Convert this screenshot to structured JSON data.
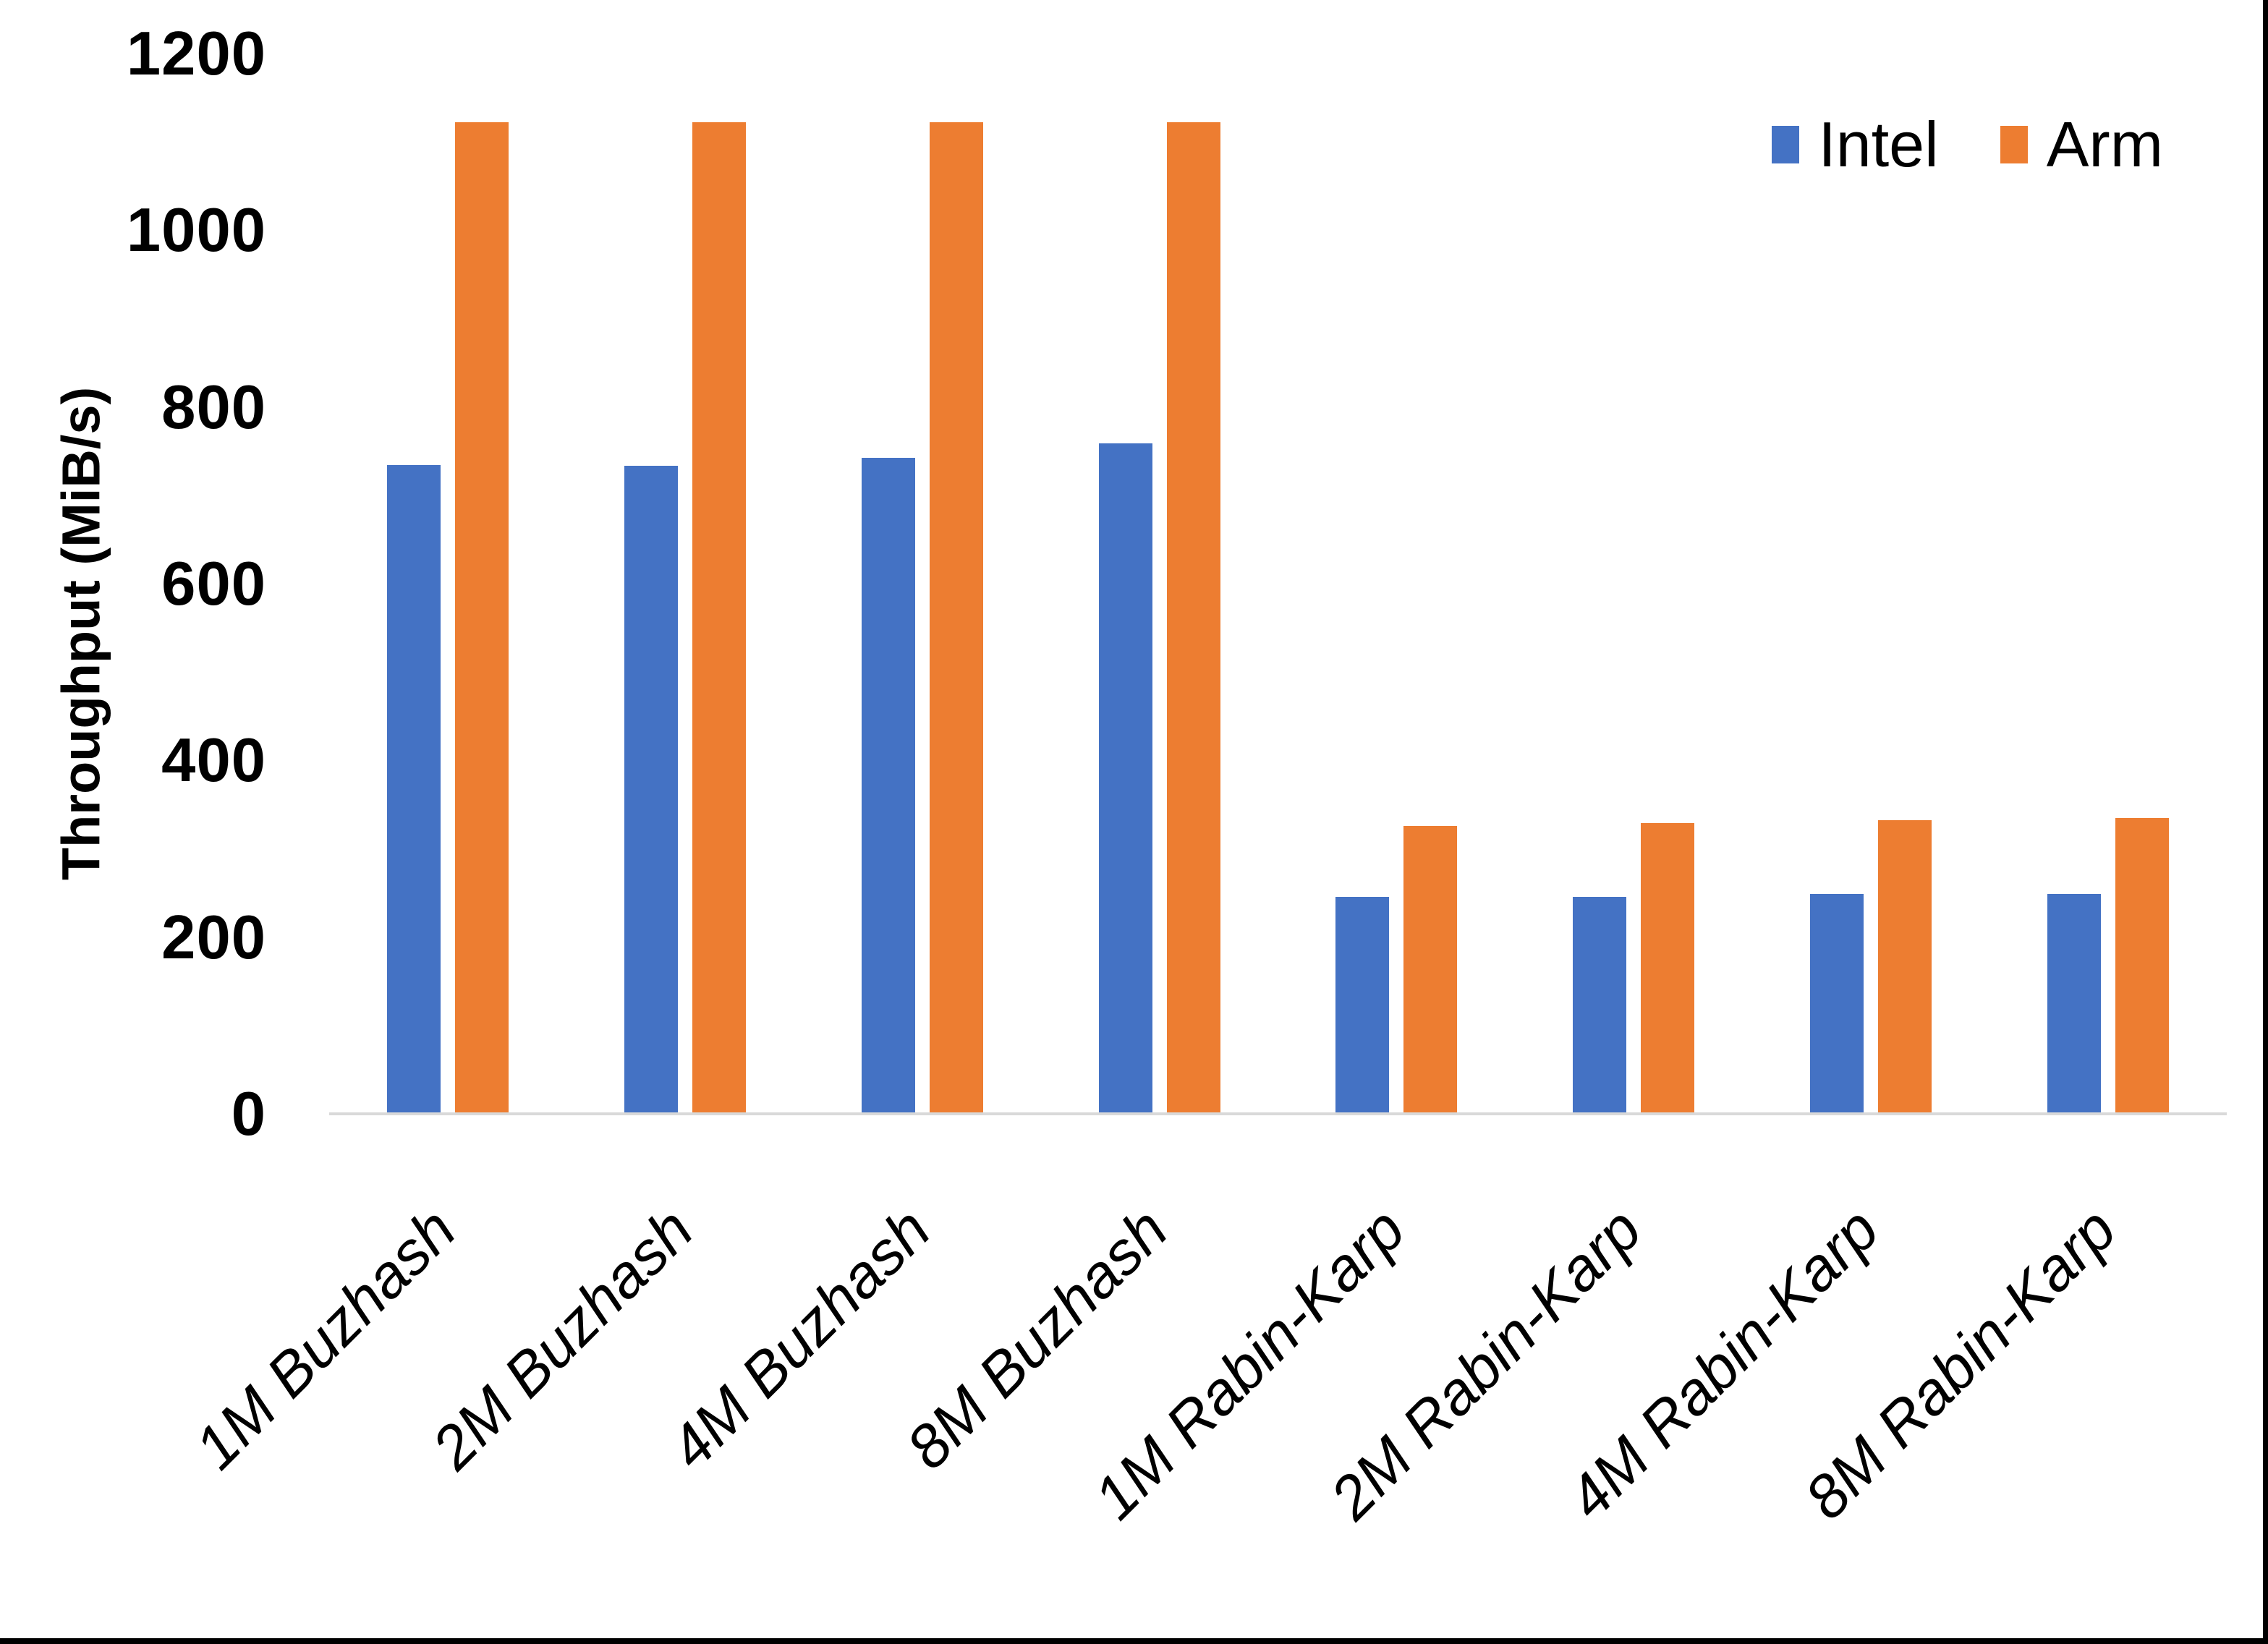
{
  "chart_data": {
    "type": "bar",
    "title": "",
    "xlabel": "",
    "ylabel": "Throughput (MiB/s)",
    "categories": [
      "1M Buzhash",
      "2M Buzhash",
      "4M Buzhash",
      "8M Buzhash",
      "1M Rabin-Karp",
      "2M Rabin-Karp",
      "4M Rabin-Karp",
      "8M Rabin-Karp"
    ],
    "series": [
      {
        "name": "Intel",
        "color": "#4472C4",
        "values": [
          735,
          734,
          743,
          760,
          246,
          246,
          250,
          250
        ]
      },
      {
        "name": "Arm",
        "color": "#ED7D31",
        "values": [
          1123,
          1123,
          1123,
          1123,
          327,
          330,
          333,
          336
        ]
      }
    ],
    "y_axis": {
      "min": 0,
      "max": 1200,
      "tick_step": 200,
      "ticks": [
        0,
        200,
        400,
        600,
        800,
        1000,
        1200
      ]
    },
    "legend_position": "top-right",
    "grid": false,
    "axis_line_color": "#D9D9D9",
    "background_color": "#FFFFFF",
    "text_color": "#000000"
  }
}
